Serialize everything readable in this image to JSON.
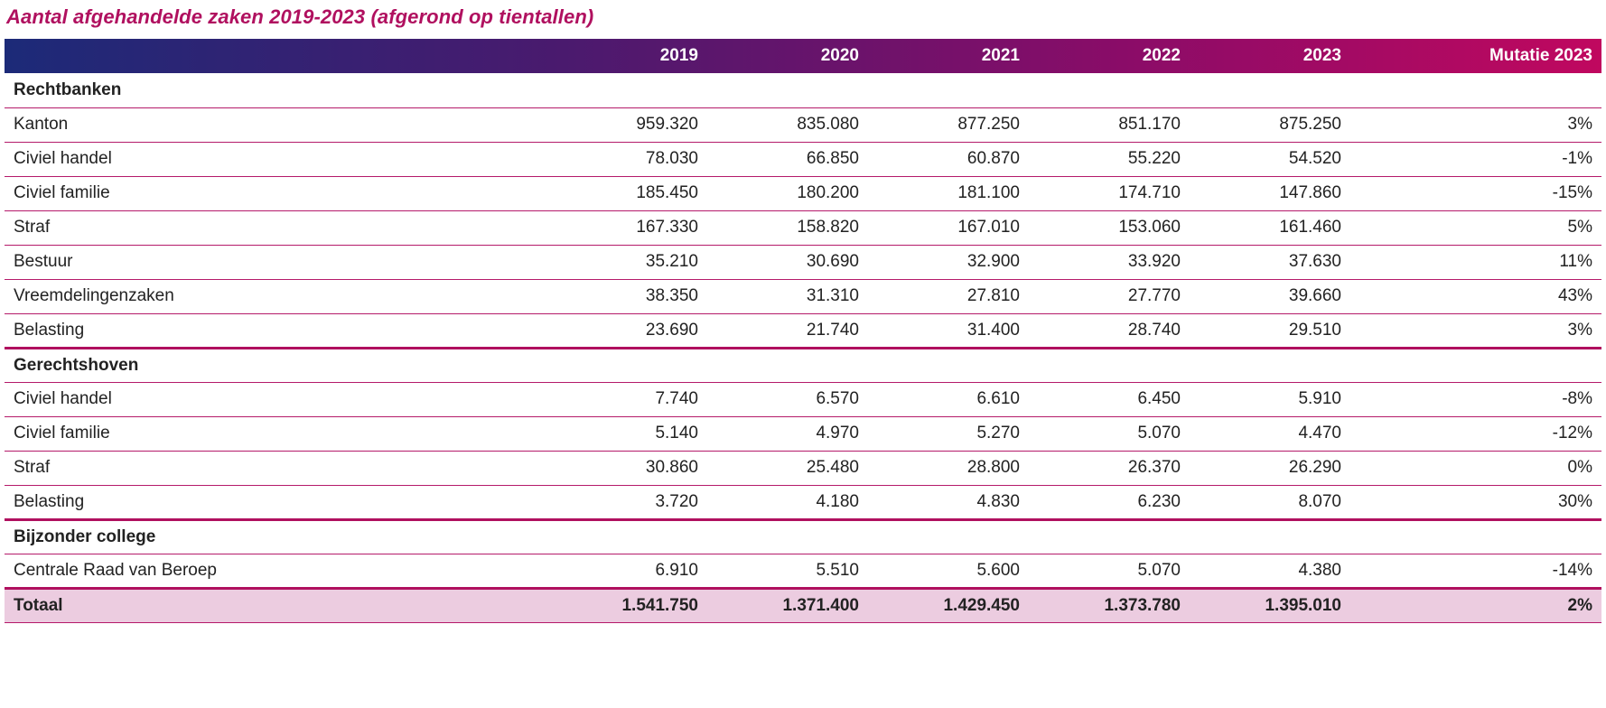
{
  "title": "Aantal afgehandelde zaken 2019-2023 (afgerond op tientallen)",
  "header": {
    "label": "",
    "years": [
      "2019",
      "2020",
      "2021",
      "2022",
      "2023"
    ],
    "mutation": "Mutatie 2023"
  },
  "colors": {
    "accent": "#b0105f",
    "header_start": "#1c2a78",
    "header_end": "#c0085f",
    "total_bg": "#eccce0"
  },
  "sections": [
    {
      "name": "Rechtbanken",
      "rows": [
        {
          "label": "Kanton",
          "values": [
            "959.320",
            "835.080",
            "877.250",
            "851.170",
            "875.250"
          ],
          "mutation": "3%"
        },
        {
          "label": "Civiel handel",
          "values": [
            "78.030",
            "66.850",
            "60.870",
            "55.220",
            "54.520"
          ],
          "mutation": "-1%"
        },
        {
          "label": "Civiel familie",
          "values": [
            "185.450",
            "180.200",
            "181.100",
            "174.710",
            "147.860"
          ],
          "mutation": "-15%"
        },
        {
          "label": "Straf",
          "values": [
            "167.330",
            "158.820",
            "167.010",
            "153.060",
            "161.460"
          ],
          "mutation": "5%"
        },
        {
          "label": "Bestuur",
          "values": [
            "35.210",
            "30.690",
            "32.900",
            "33.920",
            "37.630"
          ],
          "mutation": "11%"
        },
        {
          "label": "Vreemdelingenzaken",
          "values": [
            "38.350",
            "31.310",
            "27.810",
            "27.770",
            "39.660"
          ],
          "mutation": "43%"
        },
        {
          "label": "Belasting",
          "values": [
            "23.690",
            "21.740",
            "31.400",
            "28.740",
            "29.510"
          ],
          "mutation": "3%"
        }
      ]
    },
    {
      "name": "Gerechtshoven",
      "rows": [
        {
          "label": "Civiel handel",
          "values": [
            "7.740",
            "6.570",
            "6.610",
            "6.450",
            "5.910"
          ],
          "mutation": "-8%"
        },
        {
          "label": "Civiel familie",
          "values": [
            "5.140",
            "4.970",
            "5.270",
            "5.070",
            "4.470"
          ],
          "mutation": "-12%"
        },
        {
          "label": "Straf",
          "values": [
            "30.860",
            "25.480",
            "28.800",
            "26.370",
            "26.290"
          ],
          "mutation": "0%"
        },
        {
          "label": "Belasting",
          "values": [
            "3.720",
            "4.180",
            "4.830",
            "6.230",
            "8.070"
          ],
          "mutation": "30%"
        }
      ]
    },
    {
      "name": "Bijzonder college",
      "rows": [
        {
          "label": "Centrale Raad van Beroep",
          "values": [
            "6.910",
            "5.510",
            "5.600",
            "5.070",
            "4.380"
          ],
          "mutation": "-14%"
        }
      ]
    }
  ],
  "total": {
    "label": "Totaal",
    "values": [
      "1.541.750",
      "1.371.400",
      "1.429.450",
      "1.373.780",
      "1.395.010"
    ],
    "mutation": "2%"
  }
}
